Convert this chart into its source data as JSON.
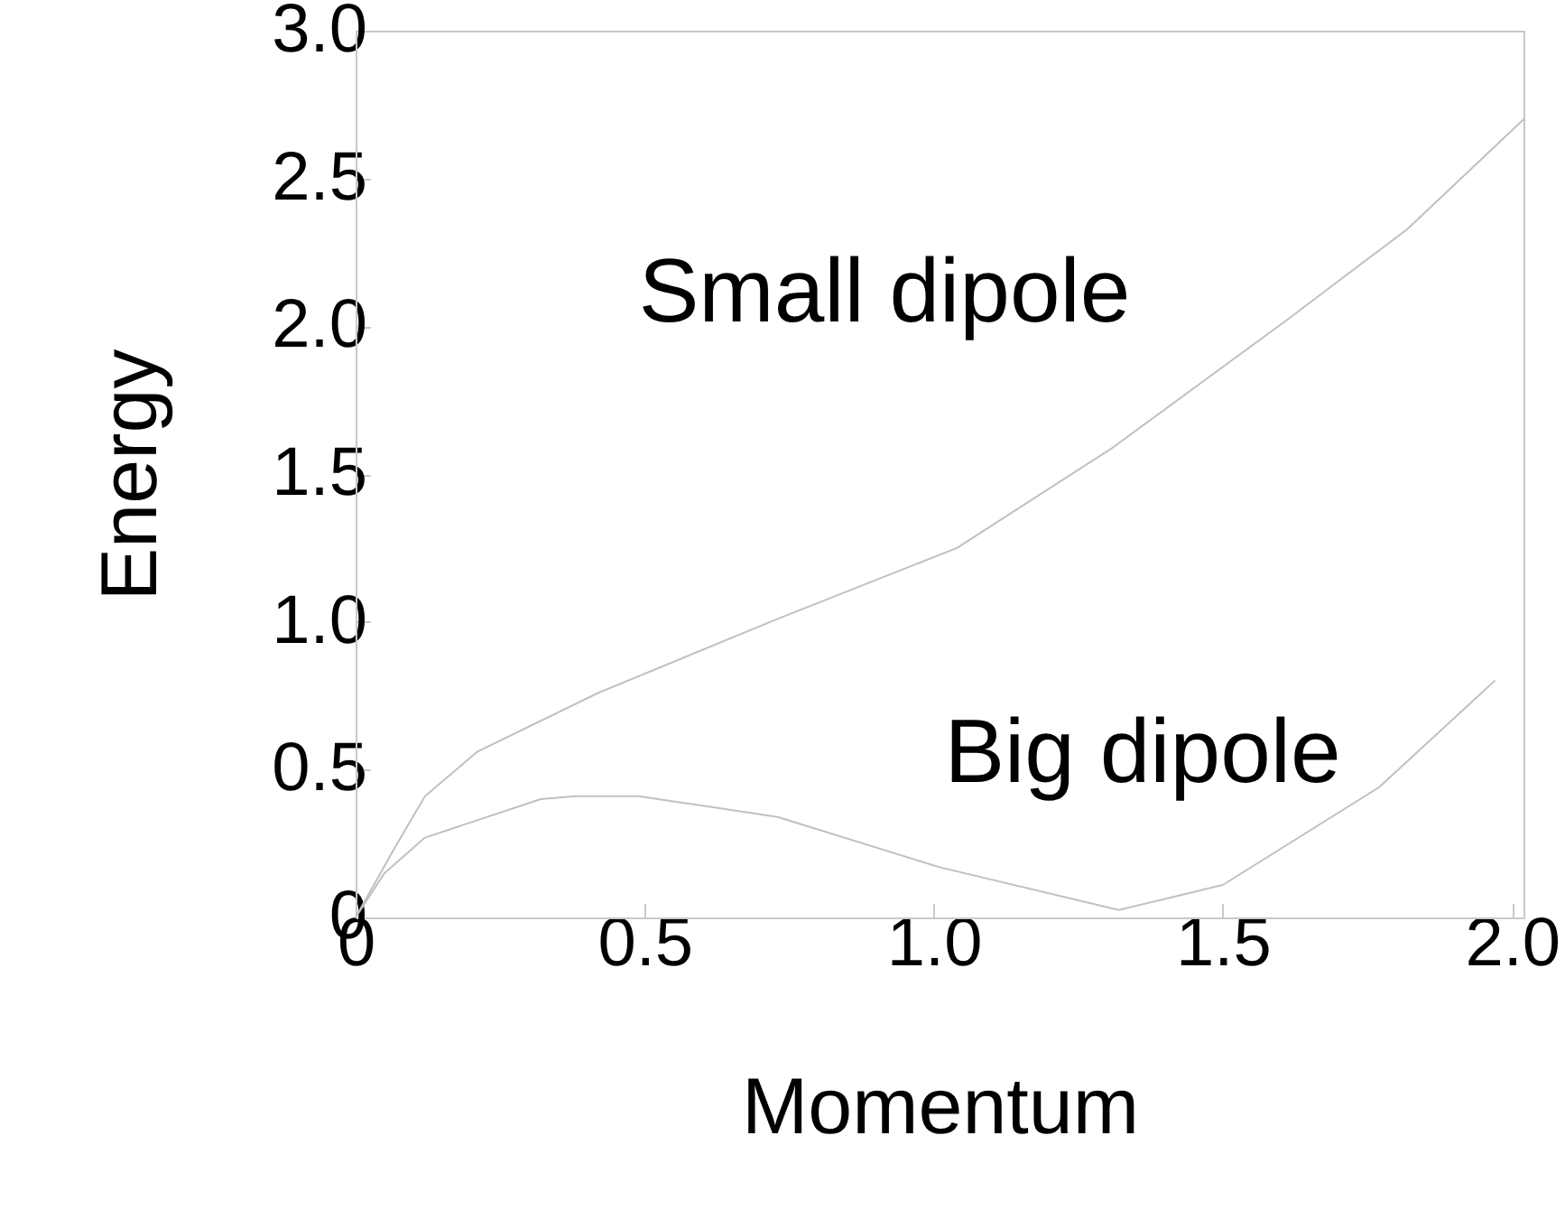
{
  "chart_data": {
    "type": "line",
    "xlabel": "Momentum",
    "ylabel": "Energy",
    "xlim": [
      0,
      2.02
    ],
    "ylim": [
      0,
      3
    ],
    "xticks": [
      0,
      {
        "value": 0.5,
        "label": "0.5"
      },
      {
        "value": 1,
        "label": "1.0"
      },
      {
        "value": 1.5,
        "label": "1.5"
      },
      {
        "value": 2,
        "label": "2.0"
      }
    ],
    "yticks": [
      0,
      {
        "value": 0.5,
        "label": "0.5"
      },
      {
        "value": 1,
        "label": "1.0"
      },
      {
        "value": 1.5,
        "label": "1.5"
      },
      {
        "value": 2,
        "label": "2.0"
      },
      {
        "value": 2.5,
        "label": "2.5"
      },
      {
        "value": 3,
        "label": "3.0"
      }
    ],
    "grid": false,
    "series": [
      {
        "color": "#c0c0c0",
        "x": [
          0,
          0.066,
          0.12,
          0.21,
          0.42,
          0.73,
          1.04,
          1.31,
          1.61,
          1.82,
          2.02
        ],
        "values": [
          0,
          0.23,
          0.41,
          0.56,
          0.76,
          1.01,
          1.25,
          1.59,
          2.02,
          2.33,
          2.7
        ]
      },
      {
        "color": "#c0c0c0",
        "x": [
          0,
          0.05,
          0.12,
          0.32,
          0.38,
          0.49,
          0.73,
          1.01,
          1.32,
          1.5,
          1.77,
          1.97
        ],
        "values": [
          0,
          0.15,
          0.27,
          0.4,
          0.41,
          0.41,
          0.34,
          0.17,
          0.025,
          0.11,
          0.44,
          0.8
        ]
      }
    ],
    "annotations": [
      "Small dipole",
      "Big dipole"
    ]
  }
}
